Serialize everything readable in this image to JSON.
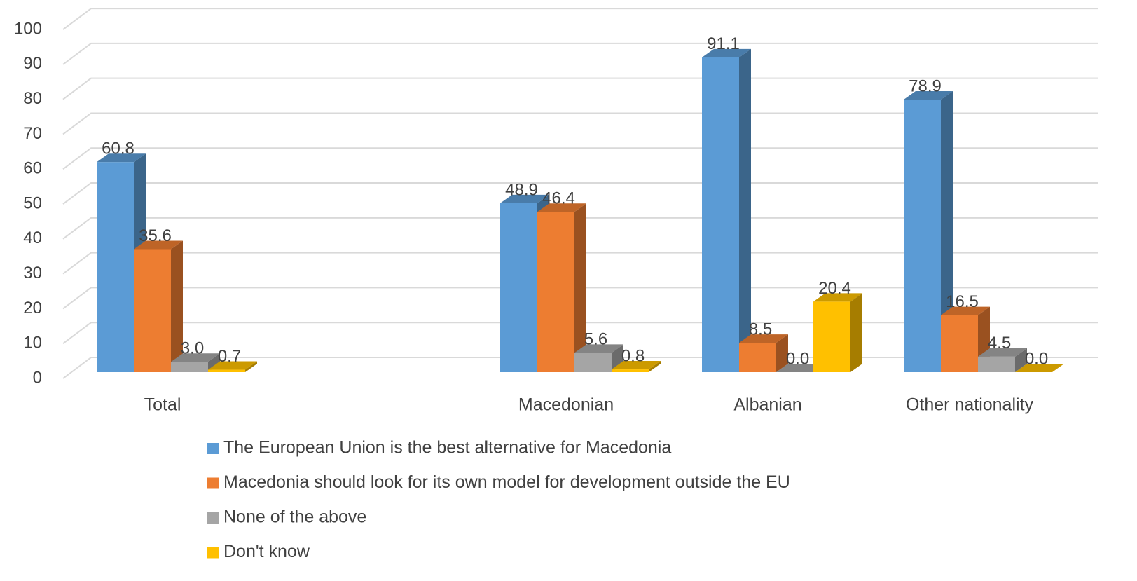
{
  "chart_data": {
    "type": "bar3d",
    "categories": [
      "Total",
      null,
      "Macedonian",
      "Albanian",
      "Other nationality"
    ],
    "series": [
      {
        "name": "The European Union is the best alternative for Macedonia",
        "color": "#5b9bd5",
        "values": [
          60.8,
          null,
          48.9,
          91.1,
          78.9
        ],
        "value_labels": [
          "60.8",
          null,
          "48.9",
          "91.1",
          "78.9"
        ]
      },
      {
        "name": "Macedonia should look for its own model for development outside the EU",
        "color": "#ed7d31",
        "values": [
          35.6,
          null,
          46.4,
          8.5,
          16.5
        ],
        "value_labels": [
          "35.6",
          null,
          "46.4",
          "8.5",
          "16.5"
        ]
      },
      {
        "name": "None of the above",
        "color": "#a5a5a5",
        "values": [
          3,
          null,
          5.6,
          0,
          4.5
        ],
        "value_labels": [
          "3.0",
          null,
          "5.6",
          "0.0",
          "4.5"
        ]
      },
      {
        "name": "Don't know",
        "color": "#ffc000",
        "values": [
          0.7,
          null,
          0.8,
          20.4,
          0
        ],
        "value_labels": [
          "0.7",
          null,
          "0.8",
          "20.4",
          "0.0"
        ]
      }
    ],
    "ylim": [
      0,
      100
    ],
    "yticks": [
      0,
      10,
      20,
      30,
      40,
      50,
      60,
      70,
      80,
      90,
      100
    ],
    "grid": true
  }
}
